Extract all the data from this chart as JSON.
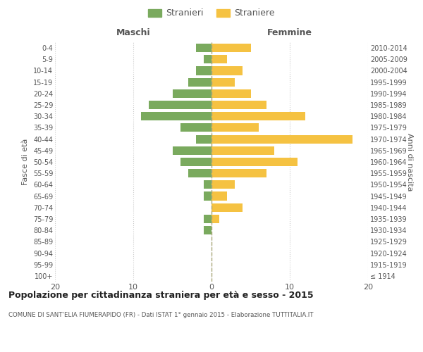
{
  "age_groups": [
    "100+",
    "95-99",
    "90-94",
    "85-89",
    "80-84",
    "75-79",
    "70-74",
    "65-69",
    "60-64",
    "55-59",
    "50-54",
    "45-49",
    "40-44",
    "35-39",
    "30-34",
    "25-29",
    "20-24",
    "15-19",
    "10-14",
    "5-9",
    "0-4"
  ],
  "birth_years": [
    "≤ 1914",
    "1915-1919",
    "1920-1924",
    "1925-1929",
    "1930-1934",
    "1935-1939",
    "1940-1944",
    "1945-1949",
    "1950-1954",
    "1955-1959",
    "1960-1964",
    "1965-1969",
    "1970-1974",
    "1975-1979",
    "1980-1984",
    "1985-1989",
    "1990-1994",
    "1995-1999",
    "2000-2004",
    "2005-2009",
    "2010-2014"
  ],
  "maschi": [
    0,
    0,
    0,
    0,
    1,
    1,
    0,
    1,
    1,
    3,
    4,
    5,
    2,
    4,
    9,
    8,
    5,
    3,
    2,
    1,
    2
  ],
  "femmine": [
    0,
    0,
    0,
    0,
    0,
    1,
    4,
    2,
    3,
    7,
    11,
    8,
    18,
    6,
    12,
    7,
    5,
    3,
    4,
    2,
    5
  ],
  "color_maschi": "#7aaa5e",
  "color_femmine": "#f5c242",
  "title": "Popolazione per cittadinanza straniera per età e sesso - 2015",
  "subtitle": "COMUNE DI SANT'ELIA FIUMERAPIDO (FR) - Dati ISTAT 1° gennaio 2015 - Elaborazione TUTTITALIA.IT",
  "xlabel_left": "Maschi",
  "xlabel_right": "Femmine",
  "ylabel_left": "Fasce di età",
  "ylabel_right": "Anni di nascita",
  "legend_maschi": "Stranieri",
  "legend_femmine": "Straniere",
  "xlim": 20,
  "background_color": "#ffffff",
  "grid_color": "#cccccc"
}
